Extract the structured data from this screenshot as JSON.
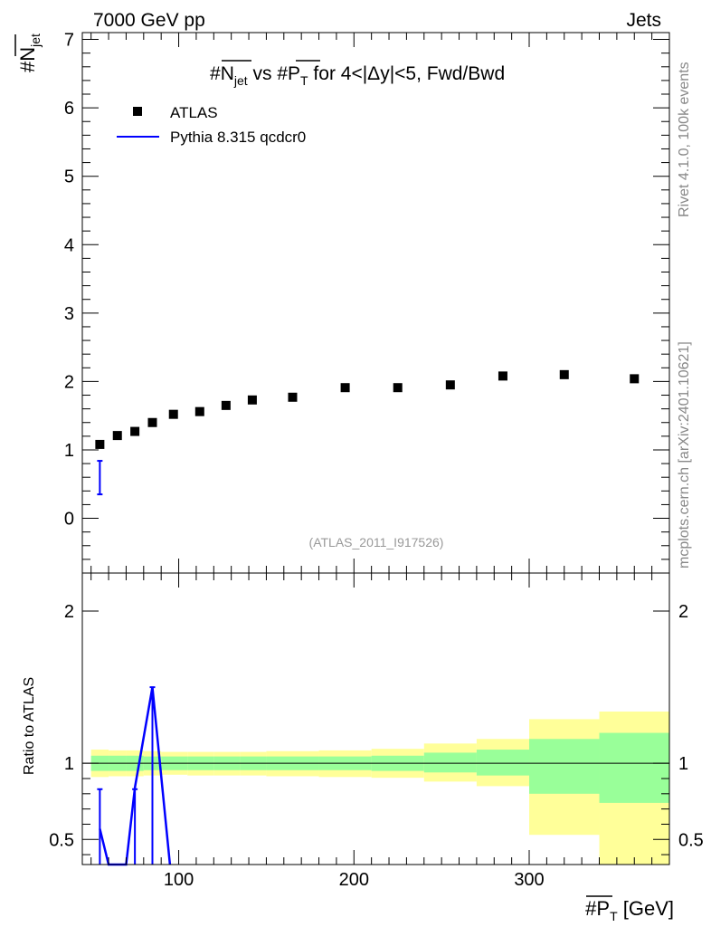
{
  "header": {
    "left": "7000 GeV pp",
    "right": "Jets"
  },
  "side_labels": {
    "rivet": "Rivet 4.1.0,  100k events",
    "mcplots": "mcplots.cern.ch [arXiv:2401.10621]"
  },
  "chart_data": [
    {
      "type": "scatter",
      "panel": "main",
      "title": {
        "prefix": "#",
        "n": "N",
        "n_sub": "jet",
        "vs": " vs #",
        "p": "P",
        "p_sub": "T",
        "suffix": " for 4<|Δy|<5, Fwd/Bwd"
      },
      "ylabel": {
        "prefix": "#",
        "n": "N",
        "n_sub": "jet"
      },
      "xlim": [
        45,
        380
      ],
      "ylim": [
        -0.8,
        7.1
      ],
      "y_ticks": [
        "0",
        "1",
        "2",
        "3",
        "4",
        "5",
        "6",
        "7"
      ],
      "watermark": "(ATLAS_2011_I917526)",
      "legend": [
        {
          "label": "ATLAS",
          "marker": "square",
          "color": "#000000"
        },
        {
          "label": "Pythia 8.315 qcdcr0",
          "marker": "line",
          "color": "#0000ff"
        }
      ],
      "series": [
        {
          "name": "ATLAS",
          "color": "#000000",
          "x": [
            55,
            65,
            75,
            85,
            97,
            112,
            127,
            142,
            165,
            195,
            225,
            255,
            285,
            320,
            360
          ],
          "y": [
            1.08,
            1.21,
            1.27,
            1.4,
            1.52,
            1.56,
            1.65,
            1.73,
            1.77,
            1.91,
            1.91,
            1.95,
            2.08,
            2.1,
            2.04
          ]
        },
        {
          "name": "Pythia 8.315 qcdcr0",
          "color": "#0000ff",
          "x": [
            55
          ],
          "y": [
            0.6
          ],
          "yerr_low": [
            0.35
          ],
          "yerr_high": [
            0.84
          ]
        }
      ]
    },
    {
      "type": "line",
      "panel": "ratio",
      "ylabel": "Ratio to ATLAS",
      "xlabel": {
        "prefix": "#",
        "p": "P",
        "p_sub": "T",
        "suffix": " [GeV]"
      },
      "xlim": [
        45,
        380
      ],
      "ylim": [
        0.335,
        2.25
      ],
      "x_ticks": [
        "100",
        "200",
        "300"
      ],
      "y_ticks": [
        "0.5",
        "1",
        "2"
      ],
      "reference": 1.0,
      "bands": {
        "bin_edges": [
          50,
          60,
          70,
          80,
          90,
          105,
          120,
          135,
          150,
          180,
          210,
          240,
          270,
          300,
          340,
          380
        ],
        "green_low": [
          0.95,
          0.95,
          0.95,
          0.955,
          0.955,
          0.955,
          0.955,
          0.955,
          0.955,
          0.955,
          0.95,
          0.94,
          0.92,
          0.8,
          0.74
        ],
        "green_high": [
          1.05,
          1.05,
          1.05,
          1.045,
          1.045,
          1.045,
          1.045,
          1.045,
          1.045,
          1.045,
          1.05,
          1.07,
          1.09,
          1.16,
          1.2
        ],
        "yellow_low": [
          0.91,
          0.915,
          0.915,
          0.92,
          0.925,
          0.92,
          0.92,
          0.92,
          0.915,
          0.91,
          0.905,
          0.88,
          0.85,
          0.53,
          0.335
        ],
        "yellow_high": [
          1.09,
          1.085,
          1.085,
          1.08,
          1.075,
          1.075,
          1.075,
          1.075,
          1.08,
          1.085,
          1.095,
          1.13,
          1.16,
          1.29,
          1.34
        ],
        "green_color": "#99ff99",
        "yellow_color": "#ffff99"
      },
      "series": [
        {
          "name": "Pythia 8.315 qcdcr0",
          "color": "#0000ff",
          "x": [
            55,
            60,
            70,
            75,
            85,
            95
          ],
          "y": [
            0.57,
            0.33,
            0.33,
            0.84,
            1.5,
            0.33
          ]
        }
      ],
      "errors": [
        {
          "x": 55,
          "low": 0.335,
          "high": 0.83
        },
        {
          "x": 75,
          "low": 0.335,
          "high": 0.83
        },
        {
          "x": 85,
          "low": 0.335,
          "high": 1.5
        }
      ]
    }
  ]
}
